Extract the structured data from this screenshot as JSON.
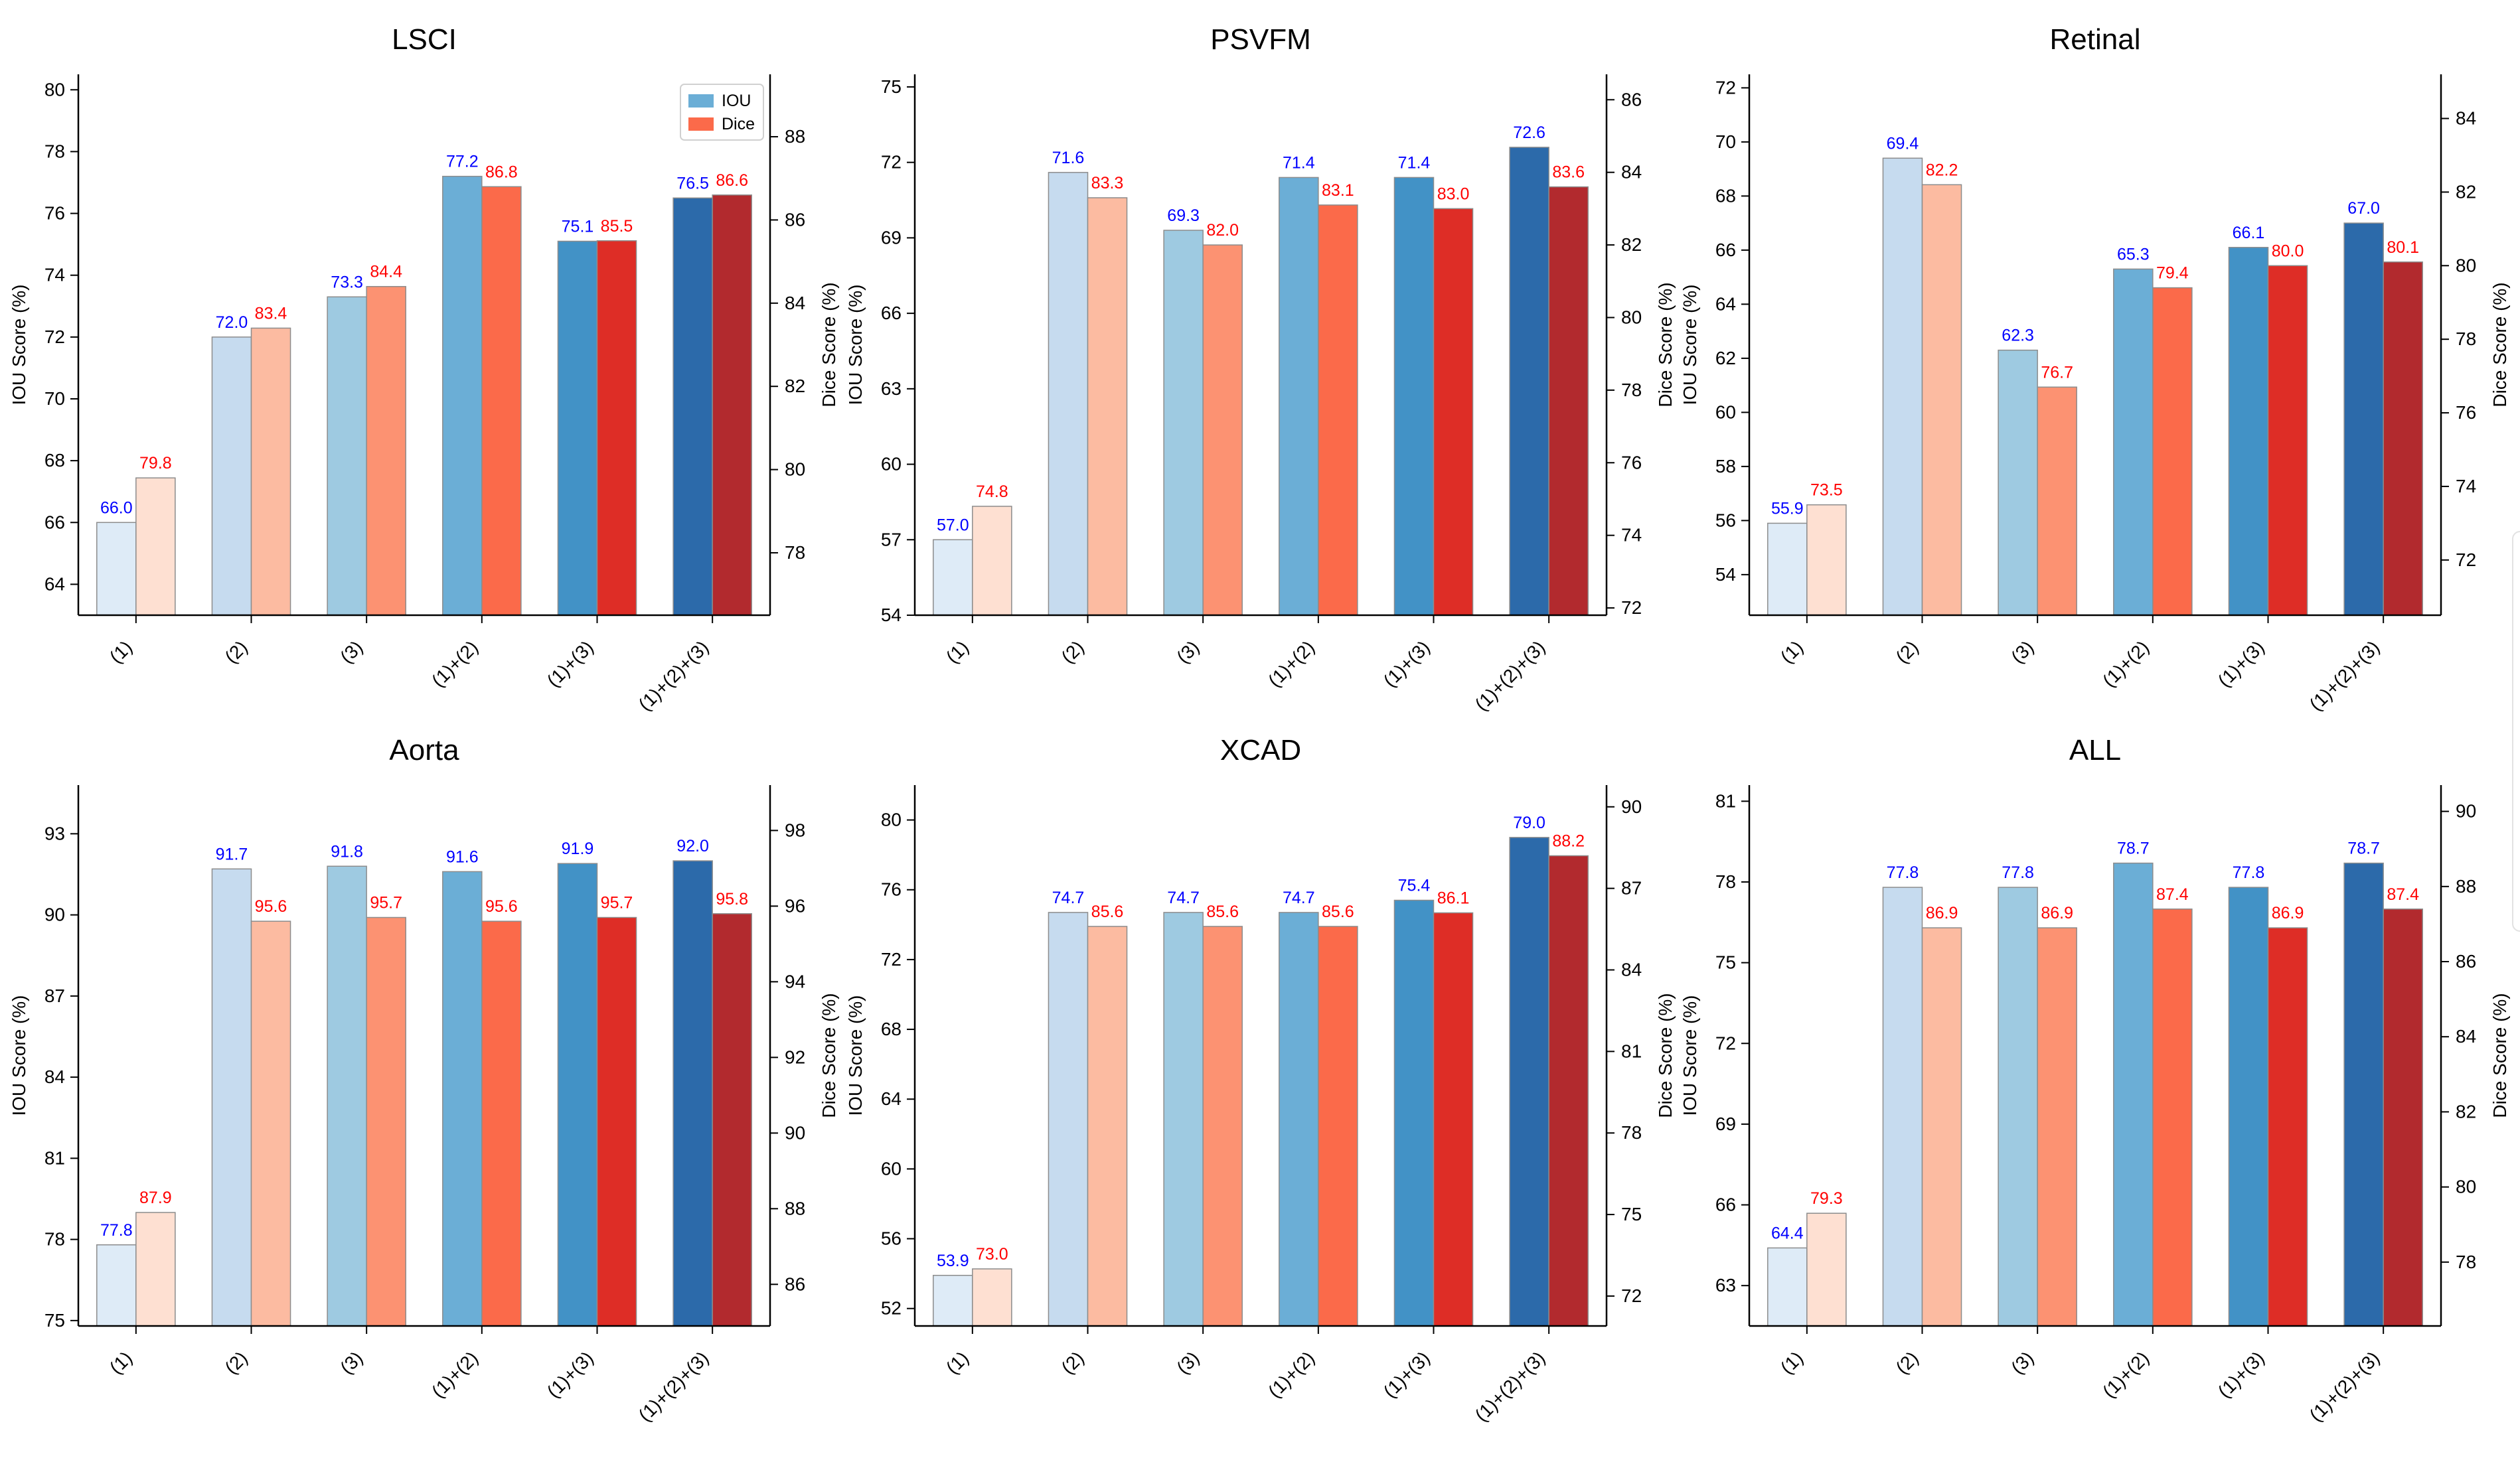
{
  "figure": {
    "legend": {
      "iou_label": "IOU",
      "dice_label": "Dice"
    },
    "colors": {
      "iou": [
        "#deebf7",
        "#c6dbef",
        "#9ecae1",
        "#6baed6",
        "#4292c6",
        "#2c6aaa"
      ],
      "dice": [
        "#fee0d2",
        "#fcbba1",
        "#fc9272",
        "#fb6a4a",
        "#de2d26",
        "#b22a2e"
      ],
      "iou_label": "#0000ff",
      "dice_label": "#ff0000"
    }
  },
  "chart_data": [
    {
      "type": "bar",
      "title": "LSCI",
      "categories": [
        "(1)",
        "(2)",
        "(3)",
        "(1)+(2)",
        "(1)+(3)",
        "(1)+(2)+(3)"
      ],
      "ylabel": "IOU Score (%)",
      "y2label": "Dice Score (%)",
      "ylim": [
        63,
        80.5
      ],
      "y2lim": [
        76.5,
        89.5
      ],
      "yticks": [
        64,
        66,
        68,
        70,
        72,
        74,
        76,
        78,
        80
      ],
      "y2ticks": [
        78,
        80,
        82,
        84,
        86,
        88
      ],
      "series": [
        {
          "name": "IOU",
          "axis": "left",
          "values": [
            66.0,
            72.0,
            73.3,
            77.2,
            75.1,
            76.5
          ],
          "labels": [
            "66.0",
            "72.0",
            "73.3",
            "77.2",
            "75.1",
            "76.5"
          ]
        },
        {
          "name": "Dice",
          "axis": "right",
          "values": [
            79.8,
            83.4,
            84.4,
            86.8,
            85.5,
            86.6
          ],
          "labels": [
            "79.8",
            "83.4",
            "84.4",
            "86.8",
            "85.5",
            "86.6"
          ]
        }
      ],
      "legend": "top-right"
    },
    {
      "type": "bar",
      "title": "PSVFM",
      "categories": [
        "(1)",
        "(2)",
        "(3)",
        "(1)+(2)",
        "(1)+(3)",
        "(1)+(2)+(3)"
      ],
      "ylabel": "IOU Score (%)",
      "y2label": "Dice Score (%)",
      "ylim": [
        54,
        75.5
      ],
      "y2lim": [
        71.8,
        86.7
      ],
      "yticks": [
        54,
        57,
        60,
        63,
        66,
        69,
        72,
        75
      ],
      "y2ticks": [
        72,
        74,
        76,
        78,
        80,
        82,
        84,
        86
      ],
      "series": [
        {
          "name": "IOU",
          "axis": "left",
          "values": [
            57.0,
            71.6,
            69.3,
            71.4,
            71.4,
            72.6
          ],
          "labels": [
            "57.0",
            "71.6",
            "69.3",
            "71.4",
            "71.4",
            "72.6"
          ]
        },
        {
          "name": "Dice",
          "axis": "right",
          "values": [
            74.8,
            83.3,
            82.0,
            83.1,
            83.0,
            83.6
          ],
          "labels": [
            "74.8",
            "83.3",
            "82.0",
            "83.1",
            "83.0",
            "83.6"
          ]
        }
      ]
    },
    {
      "type": "bar",
      "title": "Retinal",
      "categories": [
        "(1)",
        "(2)",
        "(3)",
        "(1)+(2)",
        "(1)+(3)",
        "(1)+(2)+(3)"
      ],
      "ylabel": "IOU Score (%)",
      "y2label": "Dice Score (%)",
      "ylim": [
        52.5,
        72.5
      ],
      "y2lim": [
        70.5,
        85.2
      ],
      "yticks": [
        54,
        56,
        58,
        60,
        62,
        64,
        66,
        68,
        70,
        72
      ],
      "y2ticks": [
        72,
        74,
        76,
        78,
        80,
        82,
        84
      ],
      "series": [
        {
          "name": "IOU",
          "axis": "left",
          "values": [
            55.9,
            69.4,
            62.3,
            65.3,
            66.1,
            67.0
          ],
          "labels": [
            "55.9",
            "69.4",
            "62.3",
            "65.3",
            "66.1",
            "67.0"
          ]
        },
        {
          "name": "Dice",
          "axis": "right",
          "values": [
            73.5,
            82.2,
            76.7,
            79.4,
            80.0,
            80.1
          ],
          "labels": [
            "73.5",
            "82.2",
            "76.7",
            "79.4",
            "80.0",
            "80.1"
          ]
        }
      ]
    },
    {
      "type": "bar",
      "title": "Aorta",
      "categories": [
        "(1)",
        "(2)",
        "(3)",
        "(1)+(2)",
        "(1)+(3)",
        "(1)+(2)+(3)"
      ],
      "ylabel": "IOU Score (%)",
      "y2label": "Dice Score (%)",
      "ylim": [
        74.8,
        94.8
      ],
      "y2lim": [
        84.9,
        99.2
      ],
      "yticks": [
        75,
        78,
        81,
        84,
        87,
        90,
        93
      ],
      "y2ticks": [
        86,
        88,
        90,
        92,
        94,
        96,
        98
      ],
      "series": [
        {
          "name": "IOU",
          "axis": "left",
          "values": [
            77.8,
            91.7,
            91.8,
            91.6,
            91.9,
            92.0
          ],
          "labels": [
            "77.8",
            "91.7",
            "91.8",
            "91.6",
            "91.9",
            "92.0"
          ]
        },
        {
          "name": "Dice",
          "axis": "right",
          "values": [
            87.9,
            95.6,
            95.7,
            95.6,
            95.7,
            95.8
          ],
          "labels": [
            "87.9",
            "95.6",
            "95.7",
            "95.6",
            "95.7",
            "95.8"
          ]
        }
      ]
    },
    {
      "type": "bar",
      "title": "XCAD",
      "categories": [
        "(1)",
        "(2)",
        "(3)",
        "(1)+(2)",
        "(1)+(3)",
        "(1)+(2)+(3)"
      ],
      "ylabel": "IOU Score (%)",
      "y2label": "Dice Score (%)",
      "ylim": [
        51,
        82
      ],
      "y2lim": [
        70.9,
        90.8
      ],
      "yticks": [
        52,
        56,
        60,
        64,
        68,
        72,
        76,
        80
      ],
      "y2ticks": [
        72,
        75,
        78,
        81,
        84,
        87,
        90
      ],
      "y2ticklabels": [
        "72",
        "75",
        "78",
        "81",
        "84",
        "87",
        "90"
      ],
      "series": [
        {
          "name": "IOU",
          "axis": "left",
          "values": [
            53.9,
            74.7,
            74.7,
            74.7,
            75.4,
            79.0
          ],
          "labels": [
            "53.9",
            "74.7",
            "74.7",
            "74.7",
            "75.4",
            "79.0"
          ]
        },
        {
          "name": "Dice",
          "axis": "right",
          "values": [
            73.0,
            85.6,
            85.6,
            85.6,
            86.1,
            88.2
          ],
          "labels": [
            "73.0",
            "85.6",
            "85.6",
            "85.6",
            "86.1",
            "88.2"
          ]
        }
      ]
    },
    {
      "type": "bar",
      "title": "ALL",
      "categories": [
        "(1)",
        "(2)",
        "(3)",
        "(1)+(2)",
        "(1)+(3)",
        "(1)+(2)+(3)"
      ],
      "ylabel": "IOU Score (%)",
      "y2label": "Dice Score (%)",
      "ylim": [
        61.5,
        81.6
      ],
      "y2lim": [
        76.3,
        90.7
      ],
      "yticks": [
        63,
        66,
        69,
        72,
        75,
        78,
        81
      ],
      "y2ticks": [
        78,
        80,
        82,
        84,
        86,
        88,
        90
      ],
      "series": [
        {
          "name": "IOU",
          "axis": "left",
          "values": [
            64.4,
            77.8,
            77.8,
            78.7,
            77.8,
            78.7
          ],
          "labels": [
            "64.4",
            "77.8",
            "77.8",
            "78.7",
            "77.8",
            "78.7"
          ]
        },
        {
          "name": "Dice",
          "axis": "right",
          "values": [
            79.3,
            86.9,
            86.9,
            87.4,
            86.9,
            87.4
          ],
          "labels": [
            "79.3",
            "86.9",
            "86.9",
            "87.4",
            "86.9",
            "87.4"
          ]
        }
      ]
    }
  ]
}
